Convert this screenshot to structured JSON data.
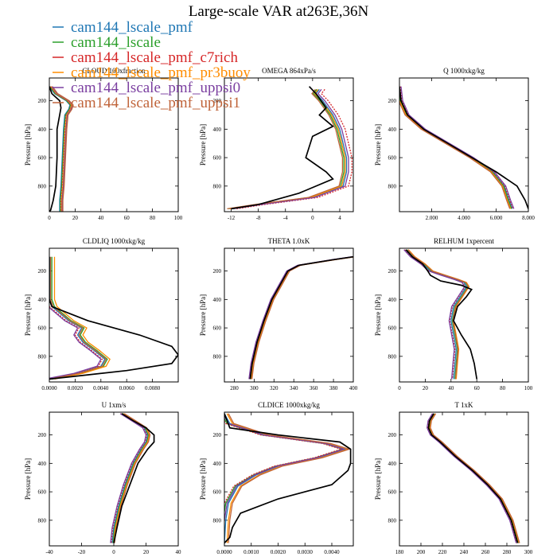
{
  "figure": {
    "title": "Large-scale VAR at263E,36N"
  },
  "legend": [
    {
      "name": "cam144_lscale_pmf",
      "color": "#1f77b4"
    },
    {
      "name": "cam144_lscale",
      "color": "#2ca02c"
    },
    {
      "name": "cam144_lscale_pmf_c7rich",
      "color": "#d62728"
    },
    {
      "name": "cam144_lscale_pmf_pr3buoy",
      "color": "#ff8c00"
    },
    {
      "name": "cam144_lscale_pmf_uppsi0",
      "color": "#7b3fa0"
    },
    {
      "name": "cam144_lscale_pmf_uppsi1",
      "color": "#c0643a"
    }
  ],
  "observations_color": "#000000",
  "chart_data": [
    {
      "type": "line",
      "title": "CLOUD 100xfraction",
      "ylabel": "Pressure [hPa]",
      "xlim": [
        0,
        100
      ],
      "ylim": [
        980,
        40
      ],
      "reverse_y": true,
      "xticks": [
        0,
        20,
        40,
        60,
        80,
        100
      ],
      "xtick_labels": [
        "0",
        "20",
        "40",
        "60",
        "80",
        "100"
      ],
      "yticks": [
        200,
        400,
        600,
        800
      ],
      "ytick_labels": [
        "200",
        "400",
        "600",
        "800"
      ],
      "obs": {
        "x": [
          0,
          2,
          8,
          9,
          8,
          6,
          6,
          5,
          3,
          1,
          0
        ],
        "y": [
          100,
          150,
          200,
          250,
          300,
          400,
          600,
          800,
          900,
          970,
          980
        ]
      },
      "model": {
        "x": [
          0,
          4,
          13,
          16,
          15,
          12,
          11,
          10,
          9,
          8,
          8,
          8
        ],
        "y": [
          100,
          150,
          200,
          230,
          260,
          300,
          400,
          600,
          800,
          900,
          960,
          980
        ]
      },
      "offsets": [
        0,
        0.5,
        1,
        1.5,
        2,
        2.5
      ]
    },
    {
      "type": "line",
      "title": "OMEGA  864xPa/s",
      "ylabel": "Pressure [hPa]",
      "xlim": [
        -13,
        6
      ],
      "ylim": [
        980,
        40
      ],
      "reverse_y": true,
      "xticks": [
        -12,
        -8,
        -4,
        0,
        4
      ],
      "xtick_labels": [
        "-12",
        "-8",
        "-4",
        "0",
        "4"
      ],
      "yticks": [
        200,
        400,
        600,
        800
      ],
      "ytick_labels": [
        "200",
        "400",
        "600",
        "800"
      ],
      "obs": {
        "x": [
          -0.5,
          0.5,
          2,
          1,
          3,
          0,
          -1,
          2,
          3,
          -2,
          -8,
          -12
        ],
        "y": [
          100,
          150,
          250,
          300,
          380,
          450,
          600,
          700,
          750,
          850,
          930,
          960
        ]
      },
      "model": {
        "x": [
          1,
          0.5,
          1.5,
          3,
          4,
          4.5,
          5,
          5,
          4.5,
          0,
          -8,
          -12
        ],
        "y": [
          120,
          150,
          200,
          300,
          400,
          500,
          600,
          700,
          800,
          880,
          930,
          960
        ]
      },
      "offsets": [
        0,
        -0.4,
        0.8,
        -0.2,
        0.3,
        -0.6
      ]
    },
    {
      "type": "line",
      "title": "Q  1000xkg/kg",
      "ylabel": "Pressure [hPa]",
      "xlim": [
        0,
        8
      ],
      "ylim": [
        980,
        40
      ],
      "reverse_y": true,
      "xticks": [
        2,
        4,
        6,
        8
      ],
      "xtick_labels": [
        "2.000",
        "4.000",
        "6.000",
        "8.000"
      ],
      "yticks": [
        200,
        400,
        600,
        800
      ],
      "ytick_labels": [
        "200",
        "400",
        "600",
        "800"
      ],
      "obs": {
        "x": [
          0,
          0.1,
          0.5,
          1.5,
          3,
          4.5,
          6,
          7.3,
          7.8,
          8
        ],
        "y": [
          100,
          200,
          300,
          400,
          500,
          600,
          700,
          800,
          900,
          960
        ]
      },
      "model": {
        "x": [
          0,
          0.1,
          0.5,
          1.5,
          3,
          4.5,
          5.8,
          6.5,
          6.8,
          7
        ],
        "y": [
          100,
          200,
          300,
          400,
          500,
          600,
          700,
          800,
          900,
          960
        ]
      },
      "offsets": [
        0,
        -0.05,
        0.05,
        -0.1,
        0.1,
        -0.15
      ]
    },
    {
      "type": "line",
      "title": "CLDLIQ  1000xkg/kg",
      "ylabel": "Pressure [hPa]",
      "xlim": [
        0,
        0.01
      ],
      "ylim": [
        980,
        40
      ],
      "reverse_y": true,
      "xticks": [
        0,
        0.002,
        0.004,
        0.006,
        0.008
      ],
      "xtick_labels": [
        "0.0000",
        "0.0020",
        "0.0040",
        "0.0060",
        "0.0080"
      ],
      "yticks": [
        200,
        400,
        600,
        800
      ],
      "ytick_labels": [
        "200",
        "400",
        "600",
        "800"
      ],
      "obs": {
        "x": [
          0,
          0,
          0.0002,
          0.003,
          0.007,
          0.0095,
          0.01,
          0.0095,
          0.006,
          0.002,
          0
        ],
        "y": [
          100,
          400,
          450,
          550,
          650,
          730,
          790,
          850,
          900,
          940,
          960
        ]
      },
      "model": {
        "x": [
          0,
          0,
          0.0002,
          0.0015,
          0.0025,
          0.0022,
          0.0026,
          0.0035,
          0.0043,
          0.004,
          0.0022,
          0.0005,
          0
        ],
        "y": [
          100,
          400,
          450,
          550,
          600,
          650,
          700,
          760,
          820,
          870,
          920,
          950,
          960
        ]
      },
      "offsets": [
        0,
        0.0002,
        -0.0002,
        0.0004,
        -0.0003,
        0.0001
      ]
    },
    {
      "type": "line",
      "title": "THETA  1.0xK",
      "ylabel": "Pressure [hPa]",
      "xlim": [
        270,
        400
      ],
      "ylim": [
        980,
        40
      ],
      "reverse_y": true,
      "xticks": [
        280,
        300,
        320,
        340,
        360,
        380,
        400
      ],
      "xtick_labels": [
        "280",
        "300",
        "320",
        "340",
        "360",
        "380",
        "400"
      ],
      "yticks": [
        200,
        400,
        600,
        800
      ],
      "ytick_labels": [
        "200",
        "400",
        "600",
        "800"
      ],
      "obs": {
        "x": [
          400,
          380,
          345,
          334,
          326,
          318,
          310,
          303,
          298,
          296
        ],
        "y": [
          100,
          120,
          160,
          200,
          300,
          400,
          550,
          700,
          850,
          960
        ]
      },
      "model": {
        "x": [
          400,
          380,
          345,
          334,
          326,
          318,
          310,
          303,
          298,
          296
        ],
        "y": [
          100,
          120,
          160,
          200,
          300,
          400,
          550,
          700,
          850,
          960
        ]
      },
      "offsets": [
        0,
        0.7,
        -0.7,
        1.2,
        -1.2,
        1.8
      ]
    },
    {
      "type": "line",
      "title": "RELHUM  1xpercent",
      "ylabel": "Pressure [hPa]",
      "xlim": [
        0,
        100
      ],
      "ylim": [
        980,
        40
      ],
      "reverse_y": true,
      "xticks": [
        0,
        20,
        40,
        60,
        80,
        100
      ],
      "xtick_labels": [
        "0",
        "20",
        "40",
        "60",
        "80",
        "100"
      ],
      "yticks": [
        200,
        400,
        600,
        800
      ],
      "ytick_labels": [
        "200",
        "400",
        "600",
        "800"
      ],
      "obs": {
        "x": [
          5,
          10,
          18,
          22,
          24,
          32,
          48,
          56,
          52,
          45,
          42,
          48,
          55,
          58,
          60
        ],
        "y": [
          50,
          100,
          150,
          200,
          230,
          270,
          300,
          330,
          380,
          450,
          550,
          650,
          750,
          850,
          960
        ]
      },
      "model": {
        "x": [
          5,
          10,
          18,
          24,
          34,
          44,
          50,
          52,
          47,
          42,
          40,
          42,
          44,
          43,
          42
        ],
        "y": [
          50,
          100,
          150,
          200,
          230,
          260,
          280,
          310,
          380,
          450,
          550,
          650,
          750,
          850,
          960
        ]
      },
      "offsets": [
        0,
        1,
        -1,
        2,
        -1.5,
        1.5
      ]
    },
    {
      "type": "line",
      "title": "U  1xm/s",
      "ylabel": "Pressure [hPa]",
      "xlim": [
        -40,
        40
      ],
      "ylim": [
        980,
        40
      ],
      "reverse_y": true,
      "xticks": [
        -40,
        -20,
        0,
        20,
        40
      ],
      "xtick_labels": [
        "-40",
        "-20",
        "0",
        "20",
        "40"
      ],
      "yticks": [
        200,
        400,
        600,
        800
      ],
      "ytick_labels": [
        "200",
        "400",
        "600",
        "800"
      ],
      "obs": {
        "x": [
          5,
          12,
          20,
          25,
          25,
          21,
          15,
          10,
          5,
          2,
          0
        ],
        "y": [
          50,
          100,
          150,
          200,
          250,
          300,
          400,
          550,
          700,
          850,
          960
        ]
      },
      "model": {
        "x": [
          5,
          12,
          19,
          21,
          20,
          17,
          12,
          7,
          3,
          0,
          -1
        ],
        "y": [
          50,
          100,
          150,
          200,
          250,
          300,
          400,
          550,
          700,
          850,
          960
        ]
      },
      "offsets": [
        0,
        0.6,
        -0.6,
        1,
        -1,
        1.5
      ]
    },
    {
      "type": "line",
      "title": "CLDICE  1000xkg/kg",
      "ylabel": "Pressure [hPa]",
      "xlim": [
        0,
        0.0048
      ],
      "ylim": [
        980,
        40
      ],
      "reverse_y": true,
      "xticks": [
        0,
        0.001,
        0.002,
        0.003,
        0.004
      ],
      "xtick_labels": [
        "0.0000",
        "0.0010",
        "0.0020",
        "0.0030",
        "0.0040"
      ],
      "yticks": [
        200,
        400,
        600,
        800
      ],
      "ytick_labels": [
        "200",
        "400",
        "600",
        "800"
      ],
      "obs": {
        "x": [
          0,
          0.0002,
          0.002,
          0.0043,
          0.0047,
          0.0047,
          0.0046,
          0.004,
          0.002,
          0.0006,
          0.0003,
          0.0002,
          0
        ],
        "y": [
          50,
          150,
          200,
          250,
          300,
          400,
          450,
          550,
          650,
          750,
          850,
          920,
          960
        ]
      },
      "model": {
        "x": [
          0,
          0.0002,
          0.0015,
          0.0038,
          0.0045,
          0.0035,
          0.002,
          0.0012,
          0.0005,
          0.00015,
          5e-05,
          0
        ],
        "y": [
          50,
          120,
          200,
          260,
          300,
          360,
          420,
          480,
          560,
          680,
          800,
          960
        ]
      },
      "offsets": [
        0,
        -0.0001,
        -0.00015,
        0.0001,
        -5e-05,
        0.00015
      ]
    },
    {
      "type": "line",
      "title": "T  1xK",
      "ylabel": "Pressure [hPa]",
      "xlim": [
        180,
        300
      ],
      "ylim": [
        980,
        40
      ],
      "reverse_y": true,
      "xticks": [
        180,
        200,
        220,
        240,
        260,
        280,
        300
      ],
      "xtick_labels": [
        "180",
        "200",
        "220",
        "240",
        "260",
        "280",
        "300"
      ],
      "yticks": [
        200,
        400,
        600,
        800
      ],
      "ytick_labels": [
        "200",
        "400",
        "600",
        "800"
      ],
      "obs": {
        "x": [
          212,
          208,
          207,
          210,
          218,
          232,
          248,
          262,
          274,
          284,
          290
        ],
        "y": [
          50,
          100,
          150,
          200,
          250,
          350,
          450,
          550,
          650,
          800,
          960
        ]
      },
      "model": {
        "x": [
          212,
          208,
          207,
          210,
          218,
          232,
          248,
          262,
          274,
          284,
          290
        ],
        "y": [
          50,
          100,
          150,
          200,
          250,
          350,
          450,
          550,
          650,
          800,
          960
        ]
      },
      "offsets": [
        0,
        0.8,
        -0.8,
        1.3,
        -1.3,
        1.8
      ]
    }
  ]
}
